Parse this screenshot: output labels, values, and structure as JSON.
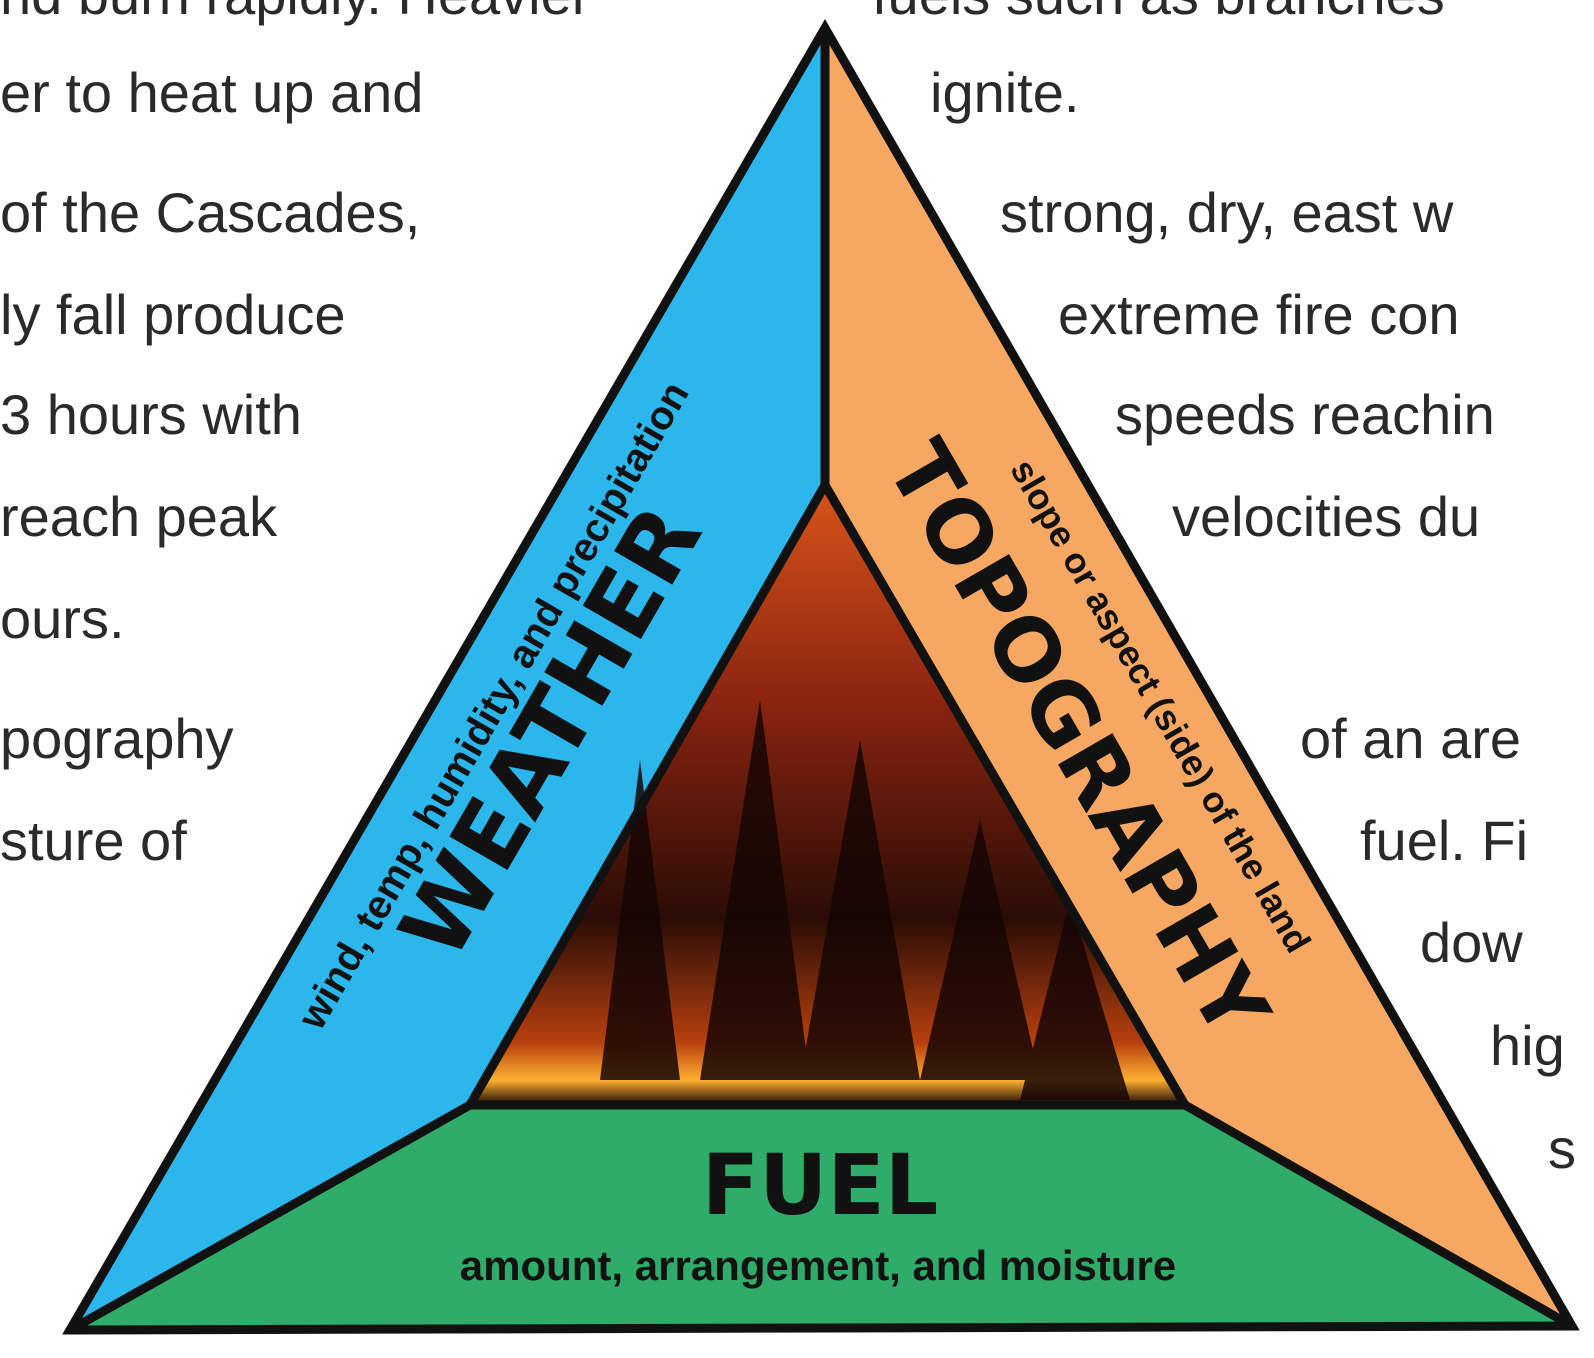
{
  "left_text": [
    "nd burn rapidly. Heavier",
    "er to heat up and",
    "of the Cascades,",
    "ly fall produce",
    "3 hours with",
    "reach peak",
    "ours.",
    "pography",
    "sture of"
  ],
  "right_text": [
    "fuels such as branches",
    "ignite.",
    "strong, dry, east w",
    "extreme fire con",
    "speeds reachin",
    "velocities du",
    "of an are",
    "fuel. Fi",
    "dow",
    "hig",
    "s"
  ],
  "diagram": {
    "weather": {
      "title": "WEATHER",
      "subtitle": "wind, temp, humidity, and precipitation"
    },
    "topography": {
      "title": "TOPOGRAPHY",
      "subtitle": "slope or aspect (side) of the land"
    },
    "fuel": {
      "title": "FUEL",
      "subtitle": "amount, arrangement, and moisture"
    }
  }
}
